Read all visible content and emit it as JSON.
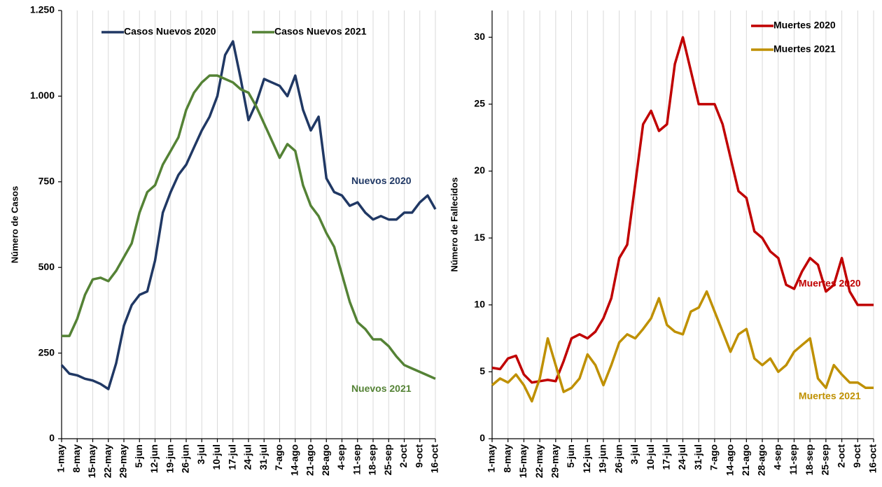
{
  "chart_data": [
    {
      "type": "line",
      "y_label": "Número de Casos",
      "categories": [
        "1-may",
        null,
        "8-may",
        null,
        "15-may",
        null,
        "22-may",
        null,
        "29-may",
        null,
        "5-jun",
        null,
        "12-jun",
        null,
        "19-jun",
        null,
        "26-jun",
        null,
        "3-jul",
        null,
        "10-jul",
        null,
        "17-jul",
        null,
        "24-jul",
        null,
        "31-jul",
        null,
        "7-ago",
        null,
        "14-ago",
        null,
        "21-ago",
        null,
        "28-ago",
        null,
        "4-sep",
        null,
        "11-sep",
        null,
        "18-sep",
        null,
        "25-sep",
        null,
        "2-oct",
        null,
        "9-oct",
        null,
        "16-oct"
      ],
      "series": [
        {
          "name": "Casos Nuevos 2020",
          "color": "#203864",
          "values": [
            215,
            190,
            185,
            175,
            170,
            160,
            145,
            220,
            330,
            390,
            420,
            430,
            520,
            660,
            720,
            770,
            800,
            850,
            900,
            940,
            1000,
            1120,
            1160,
            1050,
            930,
            980,
            1050,
            1040,
            1030,
            1000,
            1060,
            960,
            900,
            940,
            760,
            720,
            710,
            680,
            690,
            660,
            640,
            650,
            640,
            640,
            660,
            660,
            690,
            710,
            670
          ]
        },
        {
          "name": "Casos Nuevos 2021",
          "color": "#548235",
          "values": [
            300,
            300,
            350,
            420,
            465,
            470,
            460,
            490,
            530,
            570,
            660,
            720,
            740,
            800,
            840,
            880,
            960,
            1010,
            1040,
            1060,
            1060,
            1050,
            1040,
            1020,
            1010,
            970,
            920,
            870,
            820,
            860,
            840,
            740,
            680,
            650,
            600,
            560,
            480,
            400,
            340,
            320,
            290,
            290,
            270,
            240,
            215,
            205,
            195,
            185,
            175
          ]
        }
      ],
      "annotations": [
        "Nuevos 2020",
        "Nuevos 2021"
      ],
      "ylim": [
        0,
        1250
      ],
      "yticks": [
        0,
        250,
        500,
        750,
        {
          "value": 1000,
          "label": "1.000"
        },
        {
          "value": 1250,
          "label": "1.250"
        }
      ],
      "grid": "x",
      "legend": "top"
    },
    {
      "type": "line",
      "y_label": "Número de Fallecidos",
      "categories": [
        "1-may",
        null,
        "8-may",
        null,
        "15-may",
        null,
        "22-may",
        null,
        "29-may",
        null,
        "5-jun",
        null,
        "12-jun",
        null,
        "19-jun",
        null,
        "26-jun",
        null,
        "3-jul",
        null,
        "10-jul",
        null,
        "17-jul",
        null,
        "24-jul",
        null,
        "31-jul",
        null,
        "7-ago",
        null,
        "14-ago",
        null,
        "21-ago",
        null,
        "28-ago",
        null,
        "4-sep",
        null,
        "11-sep",
        null,
        "18-sep",
        null,
        "25-sep",
        null,
        "2-oct",
        null,
        "9-oct",
        null,
        "16-oct"
      ],
      "series": [
        {
          "name": "Muertes 2020",
          "color": "#c00000",
          "values": [
            5.3,
            5.2,
            6.0,
            6.2,
            4.8,
            4.2,
            4.3,
            4.4,
            4.3,
            5.8,
            7.5,
            7.8,
            7.5,
            8.0,
            9.0,
            10.5,
            13.5,
            14.5,
            19,
            23.5,
            24.5,
            23,
            23.5,
            28,
            30,
            27.5,
            25,
            25,
            25,
            23.5,
            21,
            18.5,
            18,
            15.5,
            15,
            14,
            13.5,
            11.5,
            11.2,
            12.5,
            13.5,
            13,
            11,
            11.5,
            13.5,
            11,
            10,
            10,
            10
          ]
        },
        {
          "name": "Muertes 2021",
          "color": "#bf9000",
          "values": [
            4.0,
            4.5,
            4.2,
            4.8,
            4.0,
            2.8,
            4.5,
            7.5,
            5.5,
            3.5,
            3.8,
            4.5,
            6.3,
            5.5,
            4.0,
            5.5,
            7.2,
            7.8,
            7.5,
            8.2,
            9.0,
            10.5,
            8.5,
            8.0,
            7.8,
            9.5,
            9.8,
            11,
            9.5,
            8,
            6.5,
            7.8,
            8.2,
            6.0,
            5.5,
            6.0,
            5.0,
            5.5,
            6.5,
            7.0,
            7.5,
            4.5,
            3.8,
            5.5,
            4.8,
            4.2,
            4.2,
            3.8,
            3.8
          ]
        }
      ],
      "annotations": [
        "Muertes 2020",
        "Muertes 2021"
      ],
      "ylim": [
        0,
        32
      ],
      "yticks": [
        0,
        5,
        10,
        15,
        20,
        25,
        30
      ],
      "grid": "x",
      "legend": "top-right"
    }
  ]
}
